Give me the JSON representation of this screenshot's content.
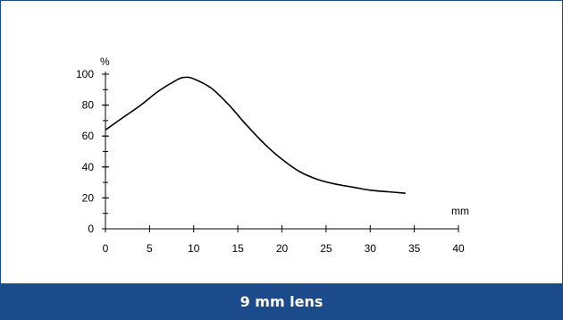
{
  "caption": {
    "text": "9 mm lens"
  },
  "colors": {
    "frame": "#1c4b8c",
    "caption_bg": "#1c4b8c",
    "caption_text": "#ffffff",
    "curve": "#000000"
  },
  "chart_data": {
    "type": "line",
    "title": "",
    "xlabel": "mm",
    "ylabel": "%",
    "xlim": [
      0,
      40
    ],
    "ylim": [
      0,
      100
    ],
    "x_ticks": [
      0,
      5,
      10,
      15,
      20,
      25,
      30,
      35,
      40
    ],
    "x_tick_labels": [
      "0",
      "5",
      "10",
      "15",
      "20",
      "25",
      "30",
      "35",
      "40"
    ],
    "y_ticks": [
      0,
      20,
      40,
      60,
      80,
      100
    ],
    "y_tick_labels": [
      "0",
      "20",
      "40",
      "60",
      "80",
      "100"
    ],
    "y_minor_step": 10,
    "grid": false,
    "legend": "none",
    "series": [
      {
        "x": [
          0,
          2,
          4,
          6,
          8,
          9,
          10,
          12,
          14,
          16,
          18,
          20,
          22,
          24,
          26,
          28,
          30,
          32,
          34
        ],
        "values": [
          64,
          72,
          80,
          89,
          96,
          98,
          97,
          91,
          80,
          67,
          55,
          45,
          37,
          32,
          29,
          27,
          25,
          24,
          23
        ]
      }
    ]
  }
}
